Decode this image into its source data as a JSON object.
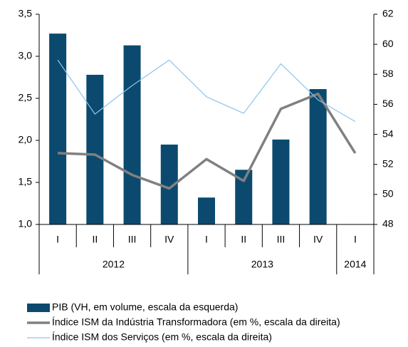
{
  "chart_data": {
    "type": "bar_line",
    "category_groups": [
      {
        "label": "2012",
        "categories": [
          "I",
          "II",
          "III",
          "IV"
        ]
      },
      {
        "label": "2013",
        "categories": [
          "I",
          "II",
          "III",
          "IV"
        ]
      },
      {
        "label": "2014",
        "categories": [
          "I"
        ]
      }
    ],
    "series": [
      {
        "name": "PIB (VH, em volume, escala da esquerda)",
        "type": "bar",
        "color": "#0b4a6e",
        "values": [
          3.27,
          2.78,
          3.13,
          1.95,
          1.32,
          1.65,
          2.01,
          2.61,
          null
        ]
      },
      {
        "name": "Índice ISM da Indústria Transformadora (em %, escala da direita)",
        "type": "line",
        "axis": "y2",
        "color": "#808080",
        "values": [
          52.75,
          52.65,
          51.3,
          50.4,
          52.35,
          50.9,
          55.7,
          56.7,
          52.75
        ]
      },
      {
        "name": "Índice ISM dos Serviços (em %, escala da direita)",
        "type": "line",
        "axis": "y2",
        "color": "#8cc4ef",
        "values": [
          58.95,
          55.35,
          57.25,
          58.95,
          56.5,
          55.4,
          58.7,
          56.3,
          54.85
        ]
      }
    ],
    "ylim": [
      1,
      3.5
    ],
    "yticks": [
      {
        "value": 1,
        "label": "1,0"
      },
      {
        "value": 1.5,
        "label": "1,5"
      },
      {
        "value": 2,
        "label": "2,0"
      },
      {
        "value": 2.5,
        "label": "2,5"
      },
      {
        "value": 3,
        "label": "3,0"
      },
      {
        "value": 3.5,
        "label": "3,5"
      }
    ],
    "y2lim": [
      48,
      62
    ],
    "y2ticks": [
      48,
      50,
      52,
      54,
      56,
      58,
      60,
      62
    ],
    "grid": false,
    "legend": "bottom"
  }
}
